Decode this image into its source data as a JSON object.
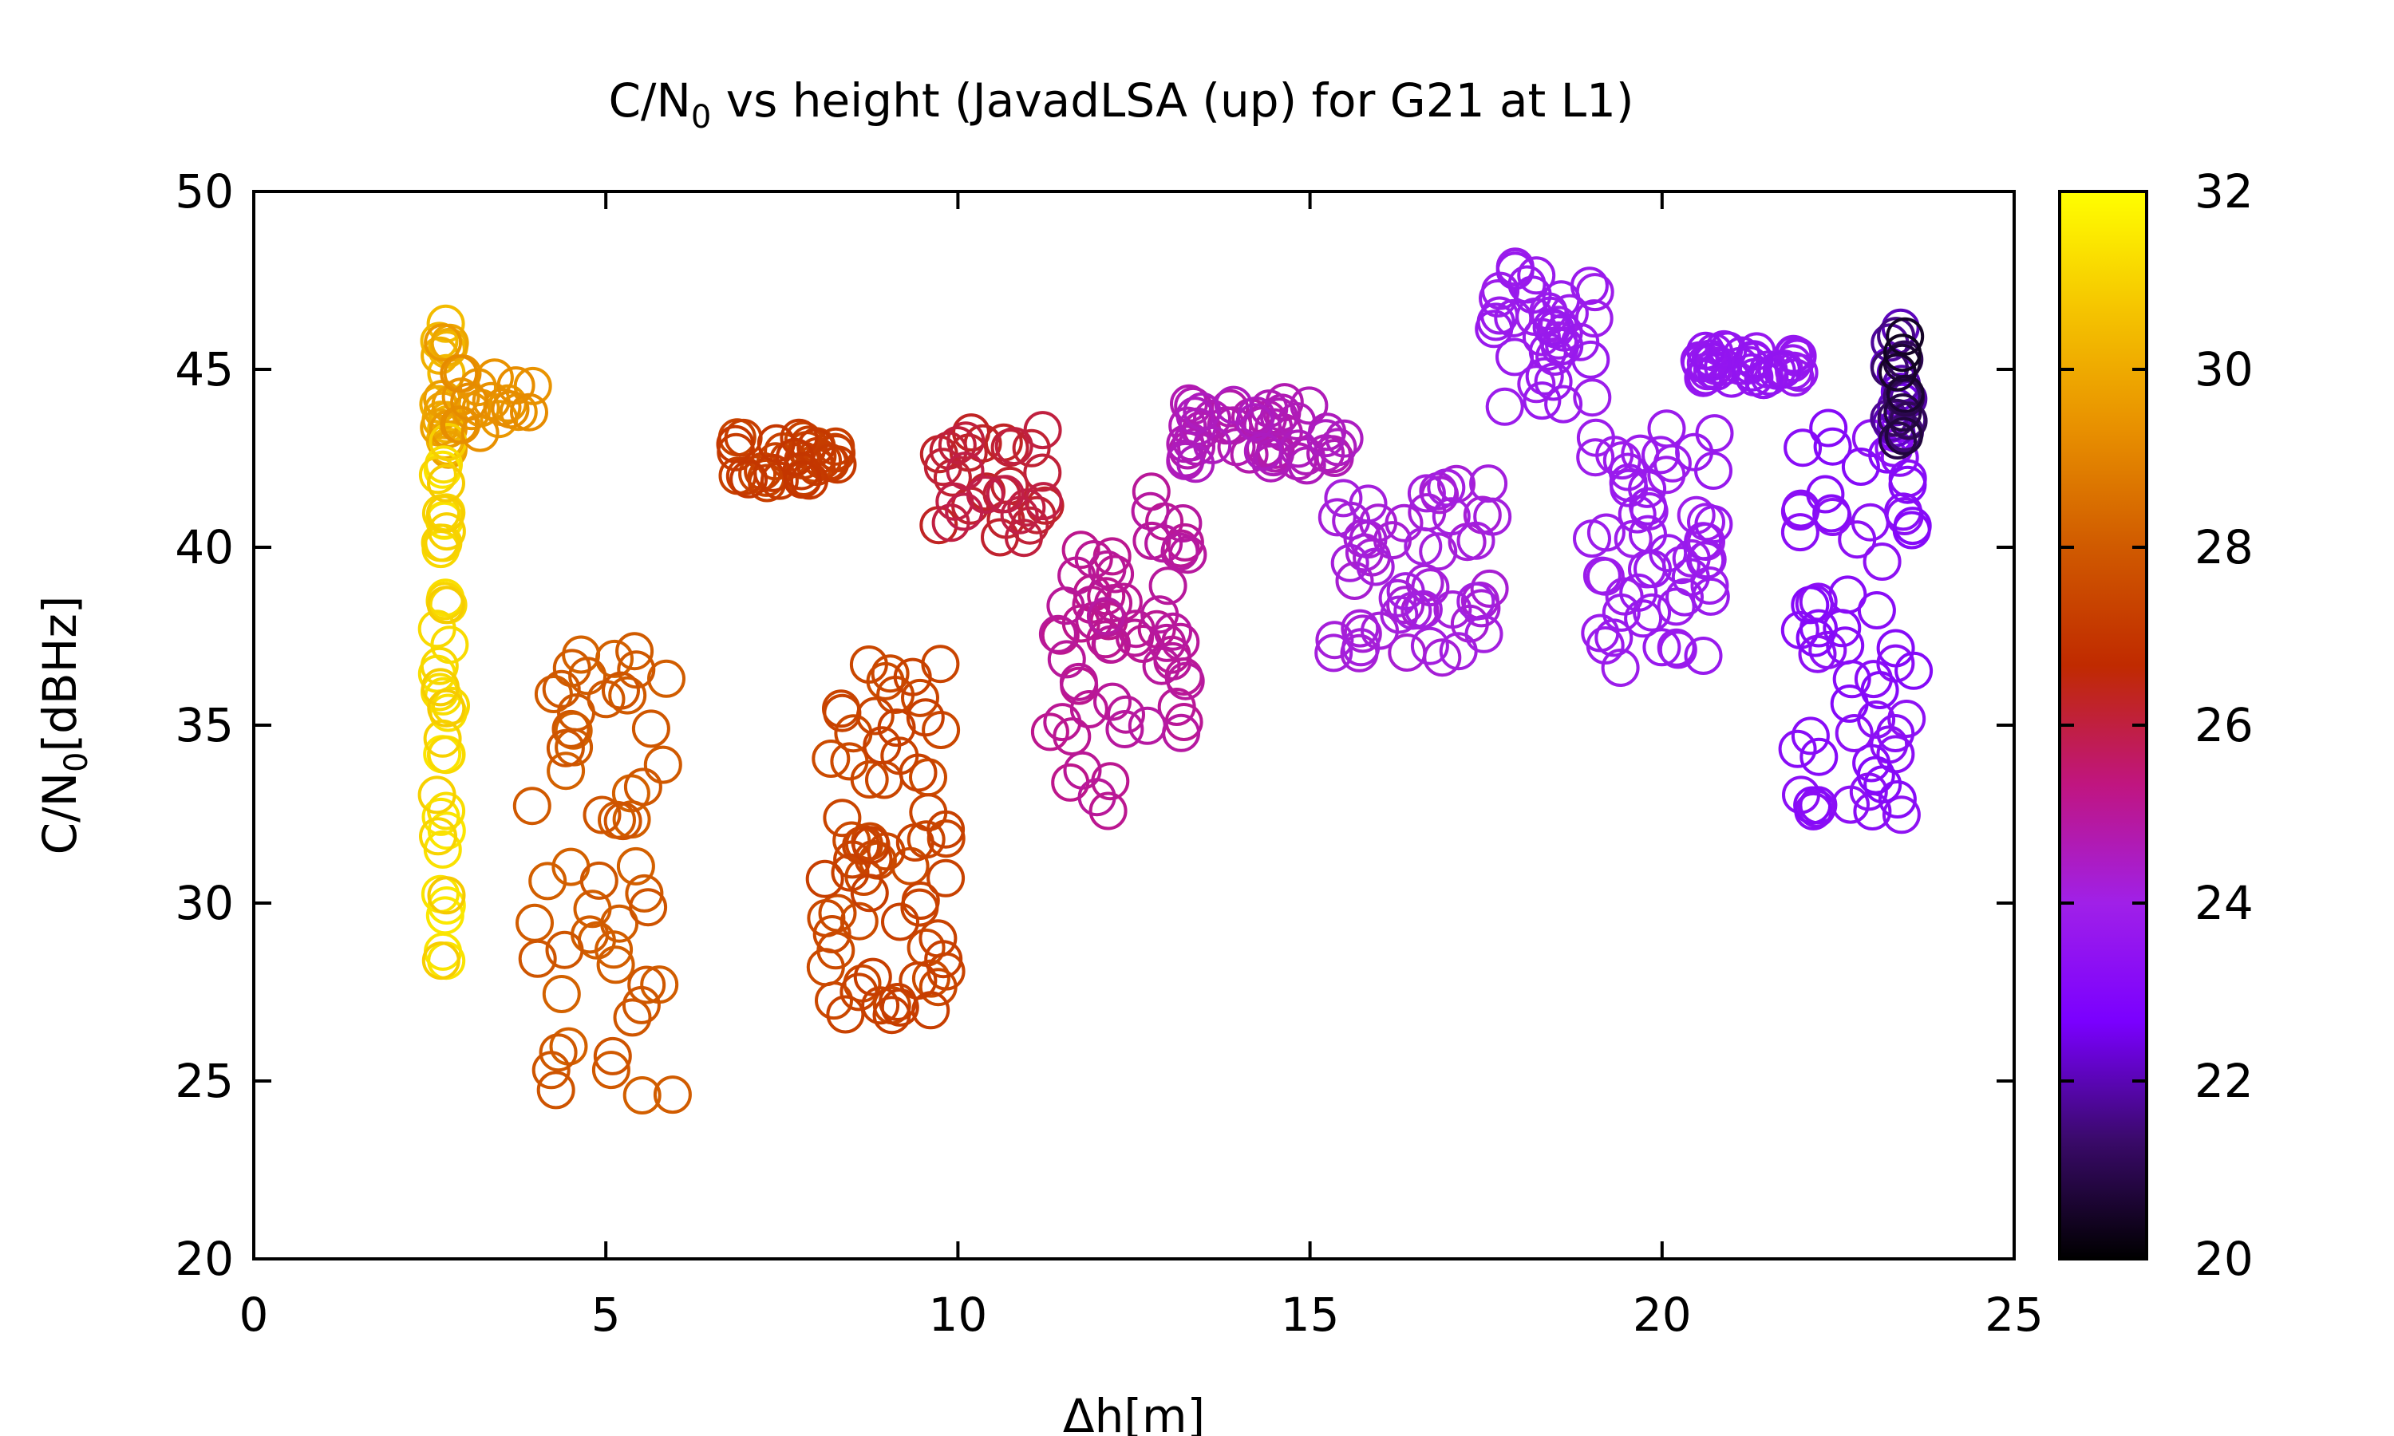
{
  "chart_data": {
    "type": "scatter",
    "title_main": "C/N",
    "title_sub": "0",
    "title_rest": " vs height (JavadLSA (up) for G21 at L1)",
    "xlabel": "Δh[m]",
    "ylabel_main": "C/N",
    "ylabel_sub": "0",
    "ylabel_rest": "[dBHz]",
    "xlim": [
      0,
      25
    ],
    "ylim": [
      20,
      50
    ],
    "xticks": [
      "0",
      "5",
      "10",
      "15",
      "20",
      "25"
    ],
    "yticks": [
      "20",
      "25",
      "30",
      "35",
      "40",
      "45",
      "50"
    ],
    "colorbar": {
      "range": [
        20,
        32
      ],
      "ticks": [
        "20",
        "22",
        "24",
        "26",
        "28",
        "30",
        "32"
      ],
      "palette": [
        "#000000",
        "#3a0a6a",
        "#7a00ff",
        "#a020e8",
        "#c01580",
        "#c02a00",
        "#d05a00",
        "#e89000",
        "#f5c400",
        "#ffff00"
      ]
    },
    "marker": "open-circle",
    "grid": false,
    "legend": "none",
    "clusters": [
      {
        "x": [
          2.6,
          2.8
        ],
        "y": [
          42,
          46.3
        ],
        "c": [
          30.5,
          29.5
        ],
        "n": 22
      },
      {
        "x": [
          2.6,
          2.8
        ],
        "y": [
          28.3,
          43
        ],
        "c": [
          31.5,
          30.8
        ],
        "n": 45
      },
      {
        "x": [
          2.8,
          4.0
        ],
        "y": [
          43.2,
          45.1
        ],
        "c": [
          29.5,
          29.2
        ],
        "n": 20
      },
      {
        "x": [
          3.9,
          6.0
        ],
        "y": [
          24.2,
          37.2
        ],
        "c": [
          28.2,
          27.8
        ],
        "n": 55
      },
      {
        "x": [
          6.8,
          8.3
        ],
        "y": [
          41.8,
          43.1
        ],
        "c": [
          27.4,
          27.0
        ],
        "n": 40
      },
      {
        "x": [
          8.1,
          9.9
        ],
        "y": [
          26.8,
          37.1
        ],
        "c": [
          27.6,
          27.2
        ],
        "n": 70
      },
      {
        "x": [
          9.6,
          11.4
        ],
        "y": [
          40.2,
          43.3
        ],
        "c": [
          26.3,
          25.9
        ],
        "n": 35
      },
      {
        "x": [
          11.3,
          12.2
        ],
        "y": [
          32.5,
          40
        ],
        "c": [
          25.2,
          25.0
        ],
        "n": 30
      },
      {
        "x": [
          12.1,
          13.3
        ],
        "y": [
          34.7,
          41.8
        ],
        "c": [
          25.1,
          24.9
        ],
        "n": 35
      },
      {
        "x": [
          13.2,
          15.6
        ],
        "y": [
          42.3,
          44.2
        ],
        "c": [
          24.8,
          24.5
        ],
        "n": 55
      },
      {
        "x": [
          15.3,
          17.6
        ],
        "y": [
          36.8,
          42
        ],
        "c": [
          24.3,
          24.1
        ],
        "n": 55
      },
      {
        "x": [
          17.6,
          19.1
        ],
        "y": [
          43.8,
          48
        ],
        "c": [
          23.9,
          23.7
        ],
        "n": 40
      },
      {
        "x": [
          19.0,
          20.8
        ],
        "y": [
          36.6,
          43.6
        ],
        "c": [
          23.9,
          23.7
        ],
        "n": 55
      },
      {
        "x": [
          20.5,
          22.0
        ],
        "y": [
          44.7,
          45.6
        ],
        "c": [
          23.7,
          23.5
        ],
        "n": 40
      },
      {
        "x": [
          21.9,
          23.6
        ],
        "y": [
          32.4,
          43.4
        ],
        "c": [
          23.4,
          23.0
        ],
        "n": 65
      },
      {
        "x": [
          23.2,
          23.5
        ],
        "y": [
          43,
          46.3
        ],
        "c": [
          22.5,
          20.4
        ],
        "n": 30
      }
    ]
  }
}
